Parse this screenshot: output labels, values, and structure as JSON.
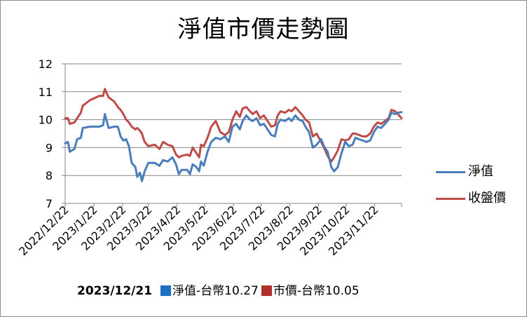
{
  "title": "淨值市價走勢圖",
  "footer": {
    "date": "2023/12/21",
    "nav_label": "淨值-台幣10.27",
    "price_label": "市價-台幣10.05"
  },
  "colors": {
    "nav": "#4a7ebb",
    "price": "#be4b48",
    "nav_box": "#1f6fc5",
    "price_box": "#b0302c",
    "grid": "#868686"
  },
  "chart_data": {
    "type": "line",
    "title": "淨值市價走勢圖",
    "ylim": [
      7,
      12
    ],
    "yticks": [
      7,
      8,
      9,
      10,
      11,
      12
    ],
    "grid": true,
    "legend": "right",
    "x_labels": [
      "2022/12/22",
      "2023/1/22",
      "2023/2/22",
      "2023/3/22",
      "2023/4/22",
      "2023/5/22",
      "2023/6/22",
      "2023/7/22",
      "2023/8/22",
      "2023/9/22",
      "2023/10/22",
      "2023/11/22"
    ],
    "x_range": [
      "2022/12/22",
      "2023/12/21"
    ],
    "series": [
      {
        "name": "淨值",
        "points": [
          [
            "2022/12/22",
            9.15
          ],
          [
            "2022/12/25",
            9.2
          ],
          [
            "2022/12/27",
            8.85
          ],
          [
            "2023/1/1",
            8.95
          ],
          [
            "2023/1/4",
            9.3
          ],
          [
            "2023/1/8",
            9.35
          ],
          [
            "2023/1/10",
            9.7
          ],
          [
            "2023/1/18",
            9.75
          ],
          [
            "2023/1/28",
            9.75
          ],
          [
            "2023/2/1",
            9.8
          ],
          [
            "2023/2/3",
            10.2
          ],
          [
            "2023/2/5",
            9.95
          ],
          [
            "2023/2/7",
            9.7
          ],
          [
            "2023/2/13",
            9.75
          ],
          [
            "2023/2/17",
            9.75
          ],
          [
            "2023/2/20",
            9.4
          ],
          [
            "2023/2/23",
            9.25
          ],
          [
            "2023/2/26",
            9.3
          ],
          [
            "2023/3/1",
            9.05
          ],
          [
            "2023/3/4",
            8.45
          ],
          [
            "2023/3/8",
            8.3
          ],
          [
            "2023/3/10",
            7.95
          ],
          [
            "2023/3/13",
            8.1
          ],
          [
            "2023/3/15",
            7.8
          ],
          [
            "2023/3/18",
            8.15
          ],
          [
            "2023/3/22",
            8.45
          ],
          [
            "2023/3/29",
            8.45
          ],
          [
            "2023/4/3",
            8.35
          ],
          [
            "2023/4/7",
            8.55
          ],
          [
            "2023/4/12",
            8.5
          ],
          [
            "2023/4/17",
            8.65
          ],
          [
            "2023/4/21",
            8.4
          ],
          [
            "2023/4/24",
            8.05
          ],
          [
            "2023/4/27",
            8.2
          ],
          [
            "2023/5/3",
            8.2
          ],
          [
            "2023/5/6",
            8.05
          ],
          [
            "2023/5/9",
            8.4
          ],
          [
            "2023/5/13",
            8.3
          ],
          [
            "2023/5/16",
            8.15
          ],
          [
            "2023/5/18",
            8.5
          ],
          [
            "2023/5/21",
            8.35
          ],
          [
            "2023/5/25",
            8.85
          ],
          [
            "2023/5/29",
            9.2
          ],
          [
            "2023/6/3",
            9.35
          ],
          [
            "2023/6/8",
            9.3
          ],
          [
            "2023/6/13",
            9.4
          ],
          [
            "2023/6/17",
            9.2
          ],
          [
            "2023/6/21",
            9.75
          ],
          [
            "2023/6/25",
            9.85
          ],
          [
            "2023/6/29",
            9.65
          ],
          [
            "2023/7/2",
            9.95
          ],
          [
            "2023/7/6",
            10.15
          ],
          [
            "2023/7/10",
            10.0
          ],
          [
            "2023/7/13",
            9.95
          ],
          [
            "2023/7/17",
            10.05
          ],
          [
            "2023/7/21",
            9.8
          ],
          [
            "2023/7/25",
            9.85
          ],
          [
            "2023/7/29",
            9.65
          ],
          [
            "2023/8/2",
            9.45
          ],
          [
            "2023/8/6",
            9.4
          ],
          [
            "2023/8/9",
            9.85
          ],
          [
            "2023/8/12",
            10.0
          ],
          [
            "2023/8/17",
            9.95
          ],
          [
            "2023/8/21",
            10.05
          ],
          [
            "2023/8/24",
            9.95
          ],
          [
            "2023/8/28",
            10.15
          ],
          [
            "2023/9/1",
            10.0
          ],
          [
            "2023/9/5",
            9.95
          ],
          [
            "2023/9/8",
            9.75
          ],
          [
            "2023/9/12",
            9.55
          ],
          [
            "2023/9/16",
            9.0
          ],
          [
            "2023/9/20",
            9.1
          ],
          [
            "2023/9/25",
            9.3
          ],
          [
            "2023/9/28",
            9.05
          ],
          [
            "2023/10/2",
            8.85
          ],
          [
            "2023/10/6",
            8.3
          ],
          [
            "2023/10/9",
            8.15
          ],
          [
            "2023/10/13",
            8.3
          ],
          [
            "2023/10/17",
            8.8
          ],
          [
            "2023/10/21",
            9.2
          ],
          [
            "2023/10/25",
            9.05
          ],
          [
            "2023/10/29",
            9.1
          ],
          [
            "2023/11/1",
            9.35
          ],
          [
            "2023/11/5",
            9.3
          ],
          [
            "2023/11/9",
            9.25
          ],
          [
            "2023/11/13",
            9.2
          ],
          [
            "2023/11/17",
            9.25
          ],
          [
            "2023/11/21",
            9.55
          ],
          [
            "2023/11/25",
            9.75
          ],
          [
            "2023/11/29",
            9.7
          ],
          [
            "2023/12/3",
            9.85
          ],
          [
            "2023/12/7",
            10.0
          ],
          [
            "2023/12/10",
            10.25
          ],
          [
            "2023/12/14",
            10.2
          ],
          [
            "2023/12/17",
            10.25
          ],
          [
            "2023/12/21",
            10.27
          ]
        ]
      },
      {
        "name": "收盤價",
        "points": [
          [
            "2022/12/22",
            10.05
          ],
          [
            "2022/12/25",
            10.05
          ],
          [
            "2022/12/27",
            9.85
          ],
          [
            "2023/1/1",
            9.9
          ],
          [
            "2023/1/4",
            10.05
          ],
          [
            "2023/1/8",
            10.25
          ],
          [
            "2023/1/10",
            10.5
          ],
          [
            "2023/1/18",
            10.7
          ],
          [
            "2023/1/28",
            10.85
          ],
          [
            "2023/2/1",
            10.85
          ],
          [
            "2023/2/3",
            11.1
          ],
          [
            "2023/2/5",
            10.95
          ],
          [
            "2023/2/7",
            10.8
          ],
          [
            "2023/2/13",
            10.65
          ],
          [
            "2023/2/17",
            10.45
          ],
          [
            "2023/2/20",
            10.35
          ],
          [
            "2023/2/23",
            10.2
          ],
          [
            "2023/2/26",
            10.0
          ],
          [
            "2023/3/1",
            9.9
          ],
          [
            "2023/3/4",
            9.75
          ],
          [
            "2023/3/8",
            9.65
          ],
          [
            "2023/3/10",
            9.7
          ],
          [
            "2023/3/13",
            9.6
          ],
          [
            "2023/3/15",
            9.5
          ],
          [
            "2023/3/18",
            9.2
          ],
          [
            "2023/3/22",
            9.05
          ],
          [
            "2023/3/29",
            9.1
          ],
          [
            "2023/4/3",
            8.95
          ],
          [
            "2023/4/7",
            9.2
          ],
          [
            "2023/4/12",
            9.1
          ],
          [
            "2023/4/17",
            9.05
          ],
          [
            "2023/4/21",
            8.75
          ],
          [
            "2023/4/24",
            8.65
          ],
          [
            "2023/4/27",
            8.7
          ],
          [
            "2023/5/3",
            8.75
          ],
          [
            "2023/5/6",
            8.7
          ],
          [
            "2023/5/9",
            9.0
          ],
          [
            "2023/5/13",
            8.8
          ],
          [
            "2023/5/16",
            8.65
          ],
          [
            "2023/5/18",
            9.1
          ],
          [
            "2023/5/21",
            9.05
          ],
          [
            "2023/5/25",
            9.35
          ],
          [
            "2023/5/29",
            9.75
          ],
          [
            "2023/6/3",
            9.95
          ],
          [
            "2023/6/8",
            9.55
          ],
          [
            "2023/6/13",
            9.45
          ],
          [
            "2023/6/17",
            9.55
          ],
          [
            "2023/6/21",
            10.0
          ],
          [
            "2023/6/25",
            10.3
          ],
          [
            "2023/6/29",
            10.1
          ],
          [
            "2023/7/2",
            10.4
          ],
          [
            "2023/7/6",
            10.45
          ],
          [
            "2023/7/10",
            10.3
          ],
          [
            "2023/7/13",
            10.2
          ],
          [
            "2023/7/17",
            10.3
          ],
          [
            "2023/7/21",
            10.05
          ],
          [
            "2023/7/25",
            10.15
          ],
          [
            "2023/7/29",
            9.95
          ],
          [
            "2023/8/2",
            9.75
          ],
          [
            "2023/8/6",
            9.8
          ],
          [
            "2023/8/9",
            10.15
          ],
          [
            "2023/8/12",
            10.3
          ],
          [
            "2023/8/17",
            10.25
          ],
          [
            "2023/8/21",
            10.35
          ],
          [
            "2023/8/24",
            10.3
          ],
          [
            "2023/8/28",
            10.45
          ],
          [
            "2023/9/1",
            10.3
          ],
          [
            "2023/9/5",
            10.15
          ],
          [
            "2023/9/8",
            10.0
          ],
          [
            "2023/9/12",
            9.9
          ],
          [
            "2023/9/16",
            9.4
          ],
          [
            "2023/9/20",
            9.5
          ],
          [
            "2023/9/25",
            9.2
          ],
          [
            "2023/9/28",
            9.0
          ],
          [
            "2023/10/2",
            8.7
          ],
          [
            "2023/10/6",
            8.5
          ],
          [
            "2023/10/9",
            8.65
          ],
          [
            "2023/10/13",
            8.9
          ],
          [
            "2023/10/17",
            9.3
          ],
          [
            "2023/10/21",
            9.25
          ],
          [
            "2023/10/25",
            9.3
          ],
          [
            "2023/10/29",
            9.5
          ],
          [
            "2023/11/1",
            9.5
          ],
          [
            "2023/11/5",
            9.45
          ],
          [
            "2023/11/9",
            9.4
          ],
          [
            "2023/11/13",
            9.4
          ],
          [
            "2023/11/17",
            9.5
          ],
          [
            "2023/11/21",
            9.75
          ],
          [
            "2023/11/25",
            9.9
          ],
          [
            "2023/11/29",
            9.85
          ],
          [
            "2023/12/3",
            9.95
          ],
          [
            "2023/12/7",
            10.05
          ],
          [
            "2023/12/10",
            10.35
          ],
          [
            "2023/12/14",
            10.3
          ],
          [
            "2023/12/17",
            10.2
          ],
          [
            "2023/12/21",
            10.05
          ]
        ]
      }
    ]
  }
}
